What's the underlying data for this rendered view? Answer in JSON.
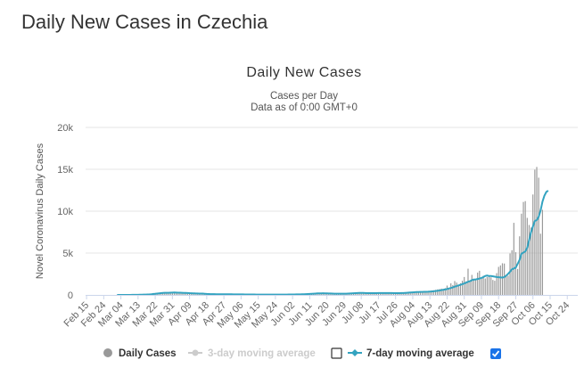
{
  "page": {
    "title": "Daily New Cases in Czechia"
  },
  "chart_data": {
    "type": "bar",
    "title": "Daily New Cases",
    "subtitle": "Cases per Day",
    "subtitle2": "Data as of 0:00 GMT+0",
    "ylabel": "Novel Coronavirus Daily Cases",
    "xlabel": "",
    "ylim": [
      0,
      20000
    ],
    "y_ticks": [
      0,
      5000,
      10000,
      15000,
      20000
    ],
    "y_tick_labels": [
      "0",
      "5k",
      "10k",
      "15k",
      "20k"
    ],
    "x_tick_labels": [
      "Feb 15",
      "Feb 24",
      "Mar 04",
      "Mar 13",
      "Mar 22",
      "Mar 31",
      "Apr 09",
      "Apr 18",
      "Apr 27",
      "May 06",
      "May 15",
      "May 24",
      "Jun 02",
      "Jun 11",
      "Jun 20",
      "Jun 29",
      "Jul 08",
      "Jul 17",
      "Jul 26",
      "Aug 04",
      "Aug 13",
      "Aug 22",
      "Aug 31",
      "Sep 09",
      "Sep 18",
      "Sep 27",
      "Oct 06",
      "Oct 15",
      "Oct 24"
    ],
    "x_start": "Feb 15",
    "day_count": 258,
    "series": [
      {
        "name": "Daily Cases",
        "type": "bar",
        "color": "#999999",
        "start_day": 16,
        "values": [
          3,
          0,
          2,
          5,
          0,
          8,
          7,
          12,
          15,
          23,
          20,
          32,
          45,
          55,
          67,
          83,
          106,
          91,
          161,
          225,
          229,
          270,
          242,
          263,
          268,
          203,
          194,
          283,
          377,
          331,
          293,
          254,
          197,
          283,
          234,
          209,
          272,
          142,
          125,
          196,
          207,
          144,
          180,
          170,
          136,
          101,
          85,
          71,
          108,
          93,
          82,
          95,
          76,
          51,
          85,
          97,
          78,
          68,
          60,
          90,
          55,
          61,
          64,
          74,
          52,
          48,
          59,
          45,
          55,
          50,
          47,
          43,
          36,
          42,
          37,
          48,
          52,
          38,
          48,
          33,
          29,
          45,
          32,
          43,
          37,
          50,
          42,
          34,
          59,
          38,
          65,
          78,
          61,
          47,
          70,
          82,
          66,
          91,
          125,
          130,
          160,
          168,
          197,
          210,
          190,
          156,
          143,
          128,
          145,
          135,
          120,
          115,
          109,
          105,
          118,
          120,
          136,
          142,
          148,
          131,
          150,
          184,
          201,
          237,
          258,
          247,
          268,
          222,
          201,
          186,
          178,
          173,
          189,
          205,
          212,
          228,
          238,
          214,
          197,
          196,
          181,
          252,
          262,
          231,
          216,
          234,
          201,
          170,
          271,
          299,
          290,
          325,
          337,
          308,
          310,
          379,
          375,
          396,
          357,
          346,
          360,
          369,
          412,
          458,
          479,
          535,
          554,
          607,
          662,
          701,
          750,
          710,
          810,
          1120,
          870,
          1385,
          1180,
          1656,
          1475,
          1120,
          1400,
          1700,
          2140,
          1620,
          3130,
          1580,
          2390,
          1950,
          1900,
          2670,
          2880,
          2120,
          2290,
          1960,
          2150,
          2250,
          2110,
          1790,
          1690,
          2600,
          3350,
          3520,
          3780,
          3750,
          2320,
          2300,
          4950,
          5340,
          8610,
          5100,
          3100,
          7000,
          9700,
          11100,
          11200,
          9200,
          8350,
          8050,
          11990,
          14960,
          15280,
          14000,
          7310,
          10160
        ]
      },
      {
        "name": "3-day moving average",
        "type": "line",
        "color": "#cccccc",
        "visible": false
      },
      {
        "name": "7-day moving average",
        "type": "line",
        "color": "#33a3c0",
        "visible": true,
        "start_day": 16,
        "values": [
          3,
          2,
          3,
          3,
          2,
          3,
          4,
          6,
          8,
          11,
          13,
          17,
          22,
          28,
          37,
          45,
          55,
          67,
          85,
          108,
          133,
          163,
          190,
          217,
          242,
          252,
          254,
          259,
          272,
          282,
          288,
          284,
          269,
          261,
          248,
          233,
          235,
          226,
          209,
          199,
          192,
          180,
          174,
          166,
          164,
          154,
          139,
          121,
          108,
          98,
          92,
          87,
          85,
          79,
          74,
          75,
          77,
          76,
          74,
          75,
          74,
          70,
          67,
          69,
          66,
          64,
          62,
          58,
          57,
          55,
          53,
          52,
          48,
          46,
          44,
          44,
          44,
          42,
          42,
          41,
          40,
          41,
          40,
          40,
          38,
          40,
          40,
          41,
          44,
          43,
          47,
          52,
          55,
          58,
          62,
          66,
          71,
          77,
          83,
          91,
          101,
          114,
          130,
          147,
          165,
          180,
          187,
          192,
          194,
          192,
          187,
          178,
          170,
          161,
          150,
          143,
          140,
          140,
          141,
          142,
          148,
          156,
          168,
          183,
          199,
          213,
          228,
          236,
          239,
          236,
          227,
          219,
          212,
          210,
          210,
          212,
          217,
          223,
          228,
          229,
          228,
          228,
          228,
          223,
          220,
          218,
          213,
          212,
          212,
          221,
          229,
          240,
          256,
          274,
          291,
          309,
          326,
          340,
          351,
          359,
          365,
          370,
          375,
          384,
          399,
          415,
          435,
          462,
          492,
          526,
          566,
          608,
          650,
          707,
          768,
          831,
          898,
          992,
          1053,
          1134,
          1200,
          1286,
          1370,
          1467,
          1571,
          1640,
          1769,
          1821,
          1849,
          1902,
          1957,
          2025,
          2124,
          2259,
          2320,
          2257,
          2258,
          2224,
          2184,
          2134,
          2113,
          2094,
          2078,
          2125,
          2305,
          2520,
          2768,
          3064,
          3155,
          3263,
          3719,
          4184,
          4911,
          5059,
          5193,
          5630,
          6550,
          7484,
          8176,
          8829,
          8938,
          9314,
          10073,
          11140,
          11843,
          12288,
          12452
        ]
      }
    ],
    "legend": {
      "position": "bottom-center",
      "items": [
        {
          "label": "Daily Cases",
          "enabled": true,
          "checkbox": false
        },
        {
          "label": "3-day moving average",
          "enabled": false,
          "checkbox": true,
          "checked": false
        },
        {
          "label": "7-day moving average",
          "enabled": true,
          "checkbox": true,
          "checked": true
        }
      ]
    },
    "grid": true
  }
}
